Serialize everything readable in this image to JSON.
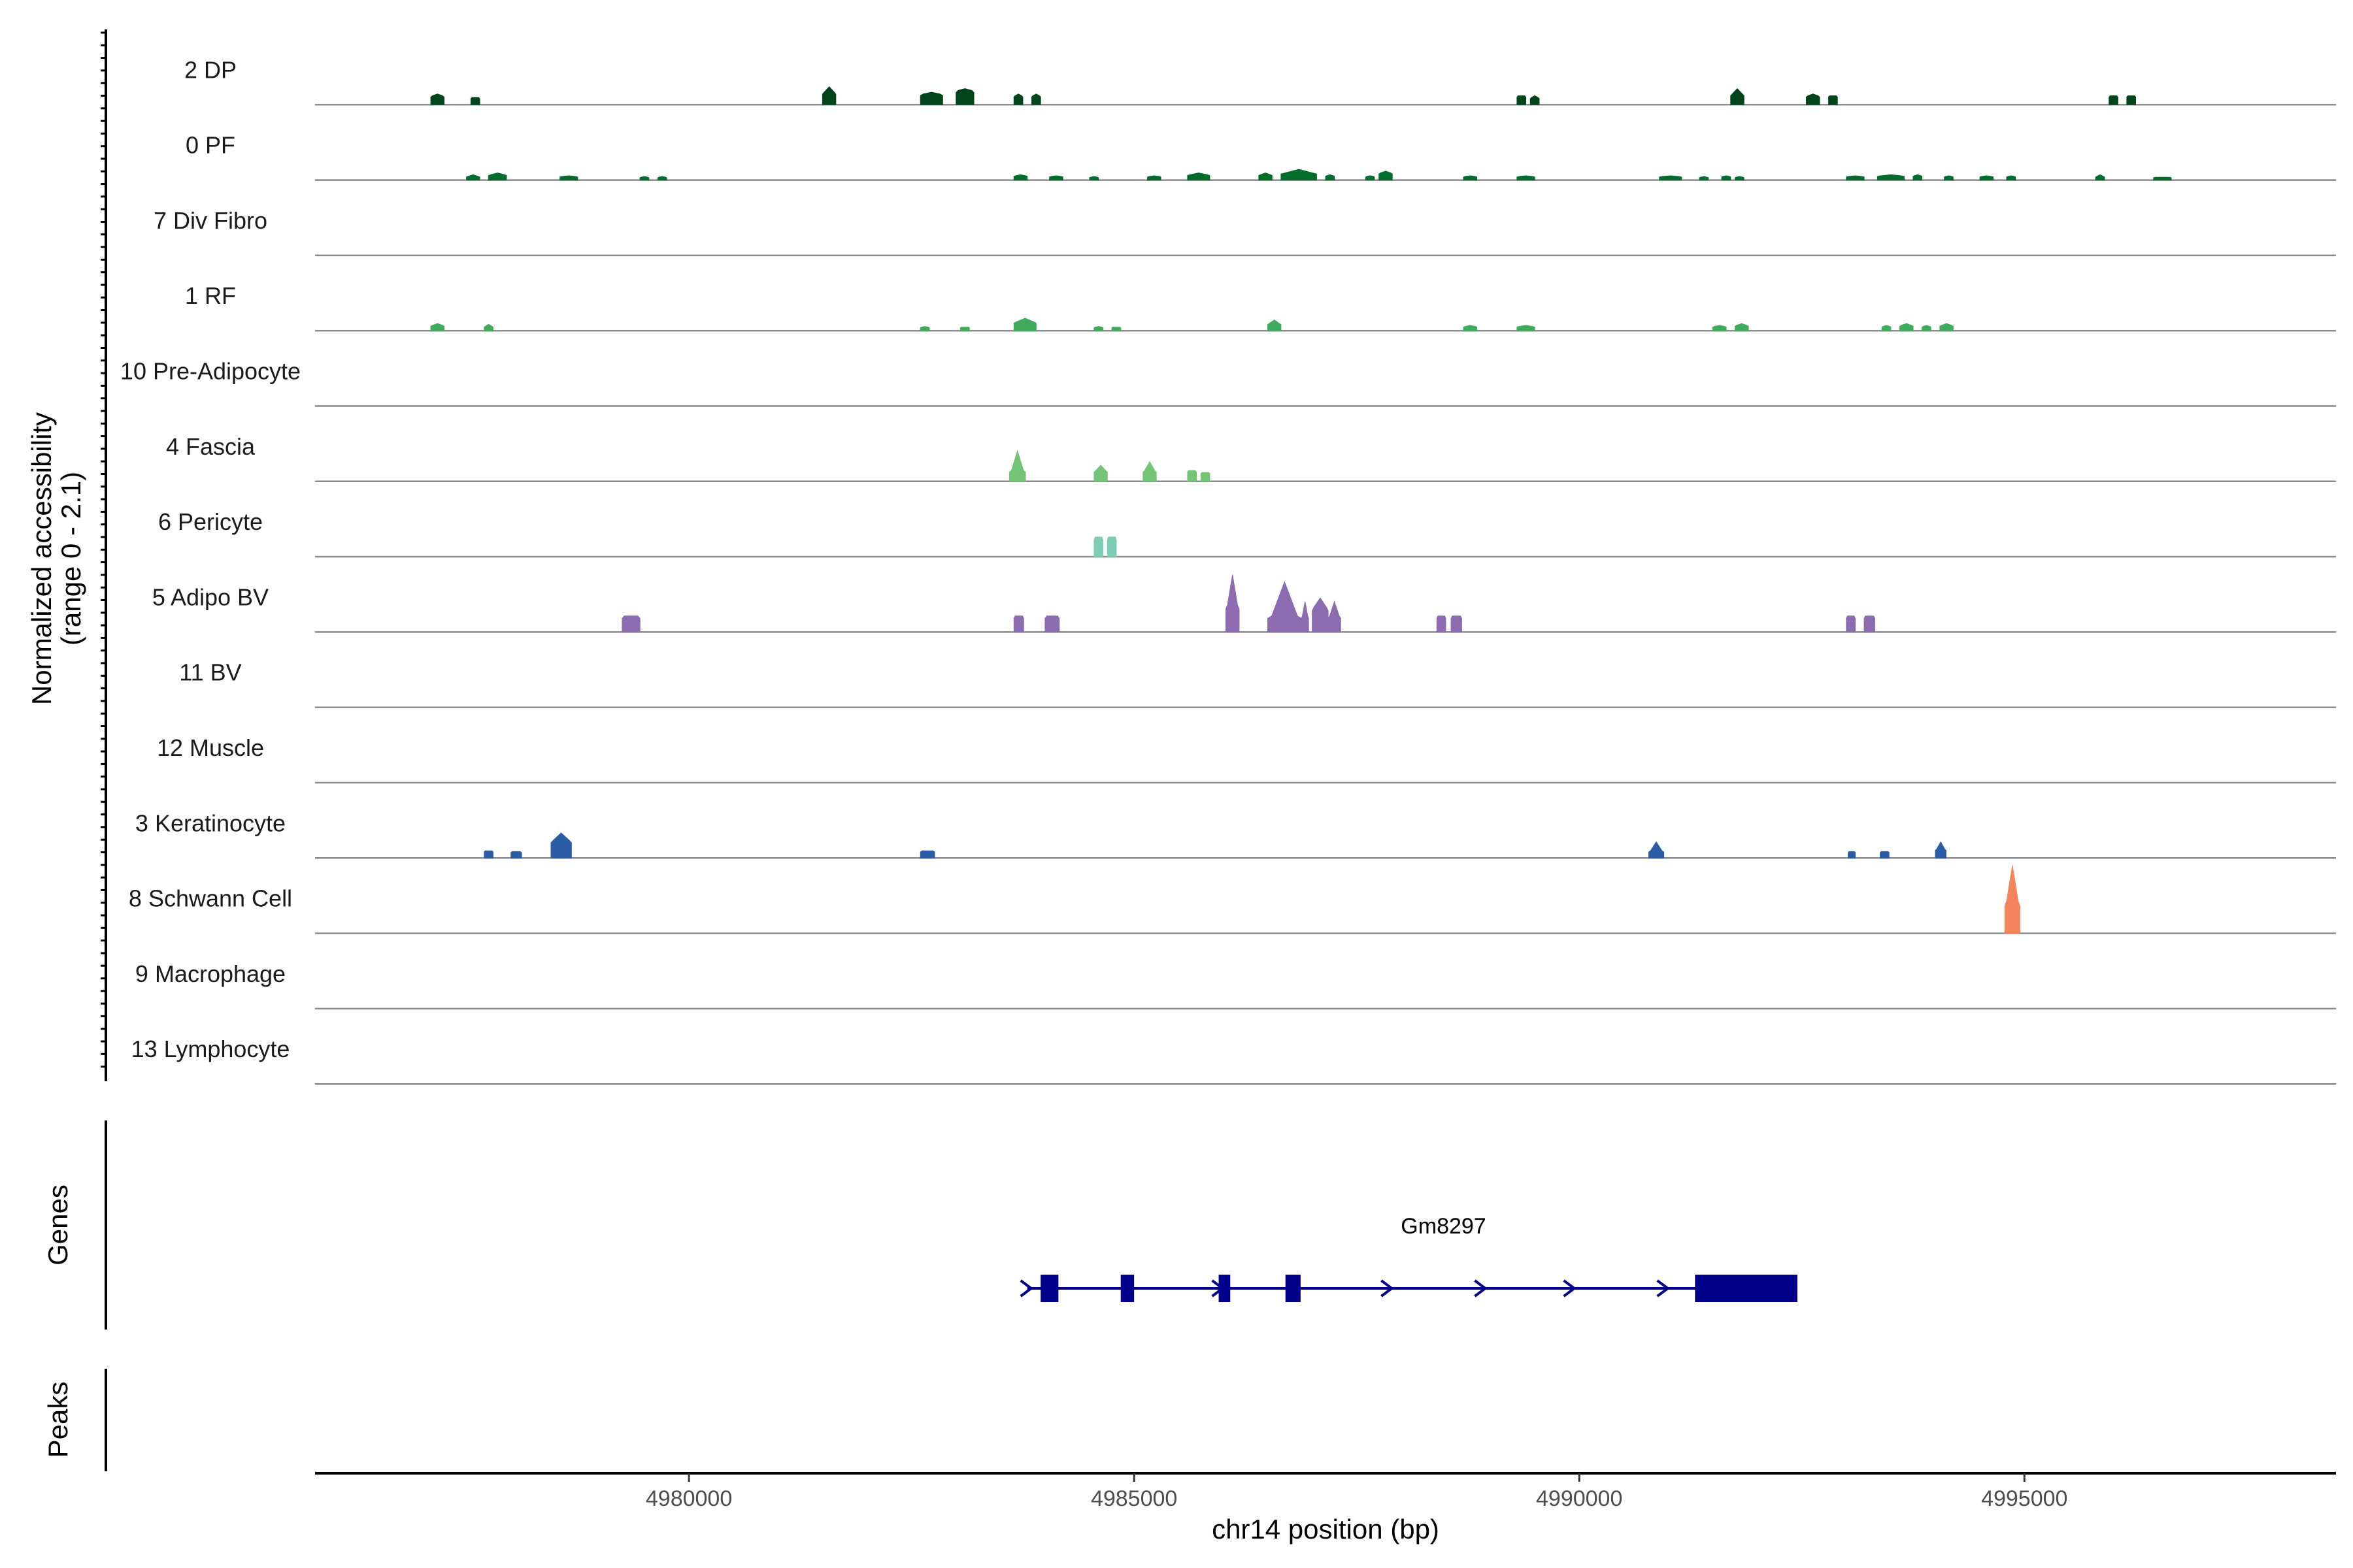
{
  "chart_data": {
    "type": "area",
    "title": "",
    "ylabel_line1": "Normalized accessibility",
    "ylabel_line2": "(range 0 - 2.1)",
    "ylim": [
      0,
      2.1
    ],
    "xlabel": "chr14 position (bp)",
    "xlim": [
      4975800,
      4998500
    ],
    "x_ticks": [
      4980000,
      4985000,
      4990000,
      4995000
    ],
    "x_tick_labels": [
      "4980000",
      "4985000",
      "4990000",
      "4995000"
    ],
    "genes_label": "Genes",
    "peaks_label": "Peaks",
    "tracks": [
      {
        "name": "2 DP",
        "color": "#00441b",
        "peaks": [
          [
            4977100,
            4977250,
            0.25,
            0.3
          ],
          [
            4977550,
            4977650,
            0.2,
            0.2
          ],
          [
            4981500,
            4981650,
            0.35,
            0.5
          ],
          [
            4982600,
            4982850,
            0.3,
            0.35
          ],
          [
            4983000,
            4983200,
            0.4,
            0.45
          ],
          [
            4983650,
            4983750,
            0.25,
            0.3
          ],
          [
            4983850,
            4983950,
            0.25,
            0.3
          ],
          [
            4989300,
            4989400,
            0.25,
            0.25
          ],
          [
            4989450,
            4989550,
            0.2,
            0.25
          ],
          [
            4991700,
            4991850,
            0.3,
            0.45
          ],
          [
            4992550,
            4992700,
            0.25,
            0.3
          ],
          [
            4992800,
            4992900,
            0.25,
            0.25
          ],
          [
            4995950,
            4996050,
            0.25,
            0.25
          ],
          [
            4996150,
            4996250,
            0.25,
            0.25
          ]
        ]
      },
      {
        "name": "0 PF",
        "color": "#006d2c",
        "peaks": [
          [
            4977500,
            4977650,
            0.1,
            0.15
          ],
          [
            4977750,
            4977950,
            0.15,
            0.2
          ],
          [
            4978550,
            4978750,
            0.1,
            0.12
          ],
          [
            4979450,
            4979550,
            0.08,
            0.1
          ],
          [
            4979650,
            4979750,
            0.08,
            0.1
          ],
          [
            4983650,
            4983800,
            0.12,
            0.15
          ],
          [
            4984050,
            4984200,
            0.1,
            0.12
          ],
          [
            4984500,
            4984600,
            0.08,
            0.1
          ],
          [
            4985150,
            4985300,
            0.1,
            0.12
          ],
          [
            4985600,
            4985850,
            0.15,
            0.2
          ],
          [
            4986400,
            4986550,
            0.15,
            0.2
          ],
          [
            4986650,
            4987050,
            0.2,
            0.3
          ],
          [
            4987150,
            4987250,
            0.12,
            0.15
          ],
          [
            4987600,
            4987700,
            0.1,
            0.12
          ],
          [
            4987750,
            4987900,
            0.2,
            0.25
          ],
          [
            4988700,
            4988850,
            0.1,
            0.12
          ],
          [
            4989300,
            4989500,
            0.1,
            0.12
          ],
          [
            4990900,
            4991150,
            0.1,
            0.12
          ],
          [
            4991350,
            4991450,
            0.08,
            0.1
          ],
          [
            4991600,
            4991700,
            0.1,
            0.12
          ],
          [
            4991750,
            4991850,
            0.08,
            0.1
          ],
          [
            4993000,
            4993200,
            0.1,
            0.12
          ],
          [
            4993350,
            4993650,
            0.12,
            0.15
          ],
          [
            4993750,
            4993850,
            0.12,
            0.15
          ],
          [
            4994100,
            4994200,
            0.1,
            0.12
          ],
          [
            4994500,
            4994650,
            0.1,
            0.12
          ],
          [
            4994800,
            4994900,
            0.1,
            0.12
          ],
          [
            4995800,
            4995900,
            0.1,
            0.15
          ],
          [
            4996450,
            4996650,
            0.08,
            0.08
          ]
        ]
      },
      {
        "name": "7 Div Fibro",
        "color": "#238b45",
        "peaks": []
      },
      {
        "name": "1 RF",
        "color": "#41ab5d",
        "peaks": [
          [
            4977100,
            4977250,
            0.15,
            0.2
          ],
          [
            4977700,
            4977800,
            0.12,
            0.18
          ],
          [
            4982600,
            4982700,
            0.1,
            0.12
          ],
          [
            4983050,
            4983150,
            0.1,
            0.1
          ],
          [
            4983650,
            4983900,
            0.25,
            0.35
          ],
          [
            4984550,
            4984650,
            0.1,
            0.12
          ],
          [
            4984750,
            4984850,
            0.1,
            0.1
          ],
          [
            4986500,
            4986650,
            0.2,
            0.3
          ],
          [
            4988700,
            4988850,
            0.12,
            0.15
          ],
          [
            4989300,
            4989500,
            0.12,
            0.15
          ],
          [
            4991500,
            4991650,
            0.12,
            0.15
          ],
          [
            4991750,
            4991900,
            0.15,
            0.2
          ],
          [
            4993400,
            4993500,
            0.12,
            0.15
          ],
          [
            4993600,
            4993750,
            0.15,
            0.2
          ],
          [
            4993850,
            4993950,
            0.12,
            0.15
          ],
          [
            4994050,
            4994200,
            0.15,
            0.2
          ]
        ]
      },
      {
        "name": "10 Pre-Adipocyte",
        "color": "#74c476",
        "peaks": []
      },
      {
        "name": "4 Fascia",
        "color": "#74c476",
        "peaks": [
          [
            4983600,
            4983780,
            0.3,
            0.85
          ],
          [
            4984550,
            4984700,
            0.3,
            0.45
          ],
          [
            4985100,
            4985250,
            0.3,
            0.55
          ],
          [
            4985600,
            4985700,
            0.3,
            0.3
          ],
          [
            4985750,
            4985850,
            0.25,
            0.25
          ]
        ]
      },
      {
        "name": "6 Pericyte",
        "color": "#7ccdb4",
        "peaks": [
          [
            4984550,
            4984650,
            0.55,
            0.55
          ],
          [
            4984700,
            4984800,
            0.55,
            0.55
          ]
        ]
      },
      {
        "name": "5 Adipo BV",
        "color": "#8c6bb1",
        "peaks": [
          [
            4979250,
            4979450,
            0.45,
            0.45
          ],
          [
            4983650,
            4983760,
            0.45,
            0.45
          ],
          [
            4984000,
            4984160,
            0.45,
            0.45
          ],
          [
            4986030,
            4986180,
            0.75,
            1.6
          ],
          [
            4986500,
            4986880,
            0.45,
            1.4
          ],
          [
            4986880,
            4986960,
            0.45,
            0.85
          ],
          [
            4987000,
            4987180,
            0.7,
            0.95
          ],
          [
            4987180,
            4987320,
            0.45,
            0.85
          ],
          [
            4988400,
            4988500,
            0.45,
            0.45
          ],
          [
            4988560,
            4988680,
            0.45,
            0.45
          ],
          [
            4993000,
            4993100,
            0.45,
            0.45
          ],
          [
            4993200,
            4993320,
            0.45,
            0.45
          ]
        ]
      },
      {
        "name": "11 BV",
        "color": "#6a51a3",
        "peaks": []
      },
      {
        "name": "12 Muscle",
        "color": "#3f007d",
        "peaks": []
      },
      {
        "name": "3 Keratinocyte",
        "color": "#2b5ca6",
        "peaks": [
          [
            4977700,
            4977800,
            0.2,
            0.2
          ],
          [
            4978000,
            4978120,
            0.18,
            0.18
          ],
          [
            4978450,
            4978680,
            0.5,
            0.7
          ],
          [
            4982600,
            4982760,
            0.2,
            0.2
          ],
          [
            4990780,
            4990950,
            0.2,
            0.45
          ],
          [
            4993020,
            4993100,
            0.18,
            0.18
          ],
          [
            4993380,
            4993480,
            0.18,
            0.18
          ],
          [
            4994000,
            4994120,
            0.25,
            0.45
          ]
        ]
      },
      {
        "name": "8 Schwann Cell",
        "color": "#f4845c",
        "peaks": [
          [
            4994780,
            4994950,
            0.9,
            1.9
          ]
        ]
      },
      {
        "name": "9 Macrophage",
        "color": "#e8603c",
        "peaks": []
      },
      {
        "name": "13 Lymphocyte",
        "color": "#d94801",
        "peaks": []
      }
    ],
    "gene": {
      "name": "Gm8297",
      "color": "#00008b",
      "start": 4983800,
      "end": 4992450,
      "exons": [
        [
          4983950,
          4984150
        ],
        [
          4984850,
          4985000
        ],
        [
          4985950,
          4986080
        ],
        [
          4986700,
          4986870
        ],
        [
          4991300,
          4992450
        ]
      ],
      "arrows": [
        4983800,
        4985950,
        4987850,
        4988900,
        4989900,
        4990950
      ]
    }
  }
}
